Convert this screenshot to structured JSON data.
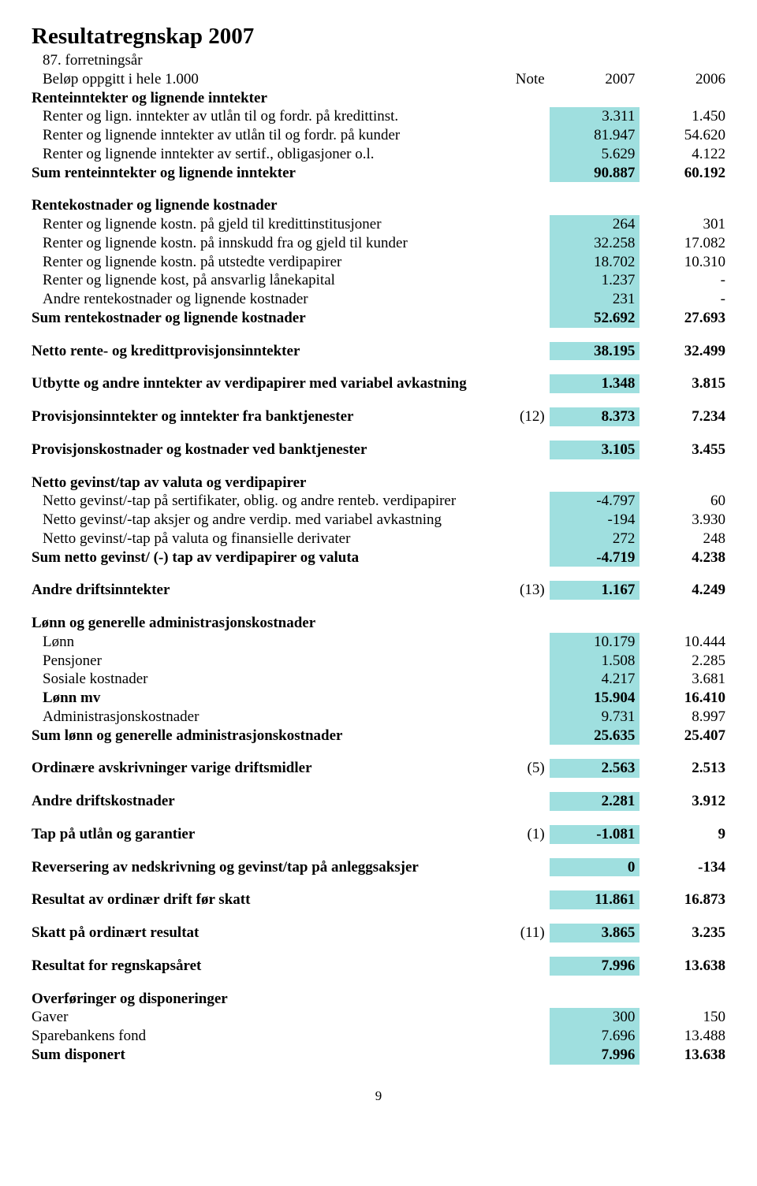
{
  "title": "Resultatregnskap 2007",
  "subtitle1": "87. forretningsår",
  "subtitle2": "Beløp oppgitt i hele 1.000",
  "header": {
    "note": "Note",
    "c2007": "2007",
    "c2006": "2006"
  },
  "pagenum": "9",
  "rows": [
    {
      "label": "Renteinntekter og lignende inntekter",
      "bold": true
    },
    {
      "label": "Renter og lign. inntekter av utlån til og fordr. på kredittinst.",
      "indent": true,
      "c2007": "3.311",
      "c2006": "1.450",
      "hl": "2007"
    },
    {
      "label": "Renter og lignende inntekter av utlån til og fordr. på kunder",
      "indent": true,
      "c2007": "81.947",
      "c2006": "54.620",
      "hl": "2007"
    },
    {
      "label": "Renter og lignende inntekter av sertif., obligasjoner o.l.",
      "indent": true,
      "c2007": "5.629",
      "c2006": "4.122",
      "hl": "2007"
    },
    {
      "label": "Sum renteinntekter og lignende inntekter",
      "bold": true,
      "c2007": "90.887",
      "c2006": "60.192",
      "hl": "2007"
    },
    {
      "spacer": true
    },
    {
      "label": "Rentekostnader og lignende kostnader",
      "bold": true
    },
    {
      "label": "Renter og lignende kostn. på gjeld til kredittinstitusjoner",
      "indent": true,
      "c2007": "264",
      "c2006": "301",
      "hl": "2007"
    },
    {
      "label": "Renter og lignende kostn. på innskudd fra og gjeld til kunder",
      "indent": true,
      "c2007": "32.258",
      "c2006": "17.082",
      "hl": "2007"
    },
    {
      "label": "Renter og lignende kostn. på utstedte verdipapirer",
      "indent": true,
      "c2007": "18.702",
      "c2006": "10.310",
      "hl": "2007"
    },
    {
      "label": "Renter og lignende kost, på ansvarlig lånekapital",
      "indent": true,
      "c2007": "1.237",
      "c2006": "-",
      "hl": "2007"
    },
    {
      "label": "Andre rentekostnader og lignende kostnader",
      "indent": true,
      "c2007": "231",
      "c2006": "-",
      "hl": "2007"
    },
    {
      "label": "Sum rentekostnader og lignende kostnader",
      "bold": true,
      "c2007": "52.692",
      "c2006": "27.693",
      "hl": "2007"
    },
    {
      "spacer": true
    },
    {
      "label": "Netto rente- og kredittprovisjonsinntekter",
      "bold": true,
      "c2007": "38.195",
      "c2006": "32.499",
      "hl": "2007"
    },
    {
      "spacer": true
    },
    {
      "label": "Utbytte og andre inntekter av verdipapirer med variabel avkastning",
      "bold": true,
      "c2007": "1.348",
      "c2006": "3.815",
      "hl": "2007"
    },
    {
      "spacer": true
    },
    {
      "label": "Provisjonsinntekter og inntekter fra banktjenester",
      "bold": true,
      "note": "(12)",
      "c2007": "8.373",
      "c2006": "7.234",
      "hl": "2007"
    },
    {
      "spacer": true
    },
    {
      "label": "Provisjonskostnader og kostnader ved banktjenester",
      "bold": true,
      "c2007": "3.105",
      "c2006": "3.455",
      "hl": "2007"
    },
    {
      "spacer": true
    },
    {
      "label": "Netto gevinst/tap av valuta og verdipapirer",
      "bold": true
    },
    {
      "label": "Netto gevinst/-tap på sertifikater, oblig. og andre renteb. verdipapirer",
      "indent": true,
      "c2007": "-4.797",
      "c2006": "60",
      "hl": "2007"
    },
    {
      "label": "Netto gevinst/-tap aksjer og andre verdip. med variabel avkastning",
      "indent": true,
      "c2007": "-194",
      "c2006": "3.930",
      "hl": "2007"
    },
    {
      "label": "Netto gevinst/-tap på valuta og finansielle derivater",
      "indent": true,
      "c2007": "272",
      "c2006": "248",
      "hl": "2007"
    },
    {
      "label": "Sum netto gevinst/ (-) tap av verdipapirer og valuta",
      "bold": true,
      "c2007": "-4.719",
      "c2006": "4.238",
      "hl": "2007"
    },
    {
      "spacer": true
    },
    {
      "label": "Andre driftsinntekter",
      "bold": true,
      "note": "(13)",
      "c2007": "1.167",
      "c2006": "4.249",
      "hl": "2007"
    },
    {
      "spacer": true
    },
    {
      "label": "Lønn og generelle administrasjonskostnader",
      "bold": true
    },
    {
      "label": "Lønn",
      "indent": true,
      "c2007": "10.179",
      "c2006": "10.444",
      "hl": "2007"
    },
    {
      "label": "Pensjoner",
      "indent": true,
      "c2007": "1.508",
      "c2006": "2.285",
      "hl": "2007"
    },
    {
      "label": "Sosiale kostnader",
      "indent": true,
      "c2007": "4.217",
      "c2006": "3.681",
      "hl": "2007"
    },
    {
      "label": "Lønn mv",
      "indent": true,
      "bold": true,
      "c2007": "15.904",
      "c2006": "16.410",
      "hl": "2007"
    },
    {
      "label": "Administrasjonskostnader",
      "indent": true,
      "c2007": "9.731",
      "c2006": "8.997",
      "hl": "2007"
    },
    {
      "label": "Sum lønn og generelle administrasjonskostnader",
      "bold": true,
      "c2007": "25.635",
      "c2006": "25.407",
      "hl": "2007"
    },
    {
      "spacer": true
    },
    {
      "label": "Ordinære avskrivninger varige driftsmidler",
      "bold": true,
      "note": "(5)",
      "c2007": "2.563",
      "c2006": "2.513",
      "hl": "2007"
    },
    {
      "spacer": true
    },
    {
      "label": "Andre driftskostnader",
      "bold": true,
      "c2007": "2.281",
      "c2006": "3.912",
      "hl": "2007"
    },
    {
      "spacer": true
    },
    {
      "label": "Tap på utlån og garantier",
      "bold": true,
      "note": "(1)",
      "c2007": "-1.081",
      "c2006": "9",
      "hl": "2007"
    },
    {
      "spacer": true
    },
    {
      "label": "Reversering av nedskrivning og gevinst/tap på anleggsaksjer",
      "bold": true,
      "c2007": "0",
      "c2006": "-134",
      "hl": "2007"
    },
    {
      "spacer": true
    },
    {
      "label": "Resultat av ordinær drift før skatt",
      "bold": true,
      "c2007": "11.861",
      "c2006": "16.873",
      "hl": "2007"
    },
    {
      "spacer": true
    },
    {
      "label": "Skatt på ordinært resultat",
      "bold": true,
      "note": "(11)",
      "c2007": "3.865",
      "c2006": "3.235",
      "hl": "2007"
    },
    {
      "spacer": true
    },
    {
      "label": "Resultat for regnskapsåret",
      "bold": true,
      "c2007": "7.996",
      "c2006": "13.638",
      "hl": "2007"
    },
    {
      "spacer": true
    },
    {
      "label": "Overføringer og disponeringer",
      "bold": true
    },
    {
      "label": "Gaver",
      "c2007": "300",
      "c2006": "150",
      "hl": "2007"
    },
    {
      "label": "Sparebankens fond",
      "c2007": "7.696",
      "c2006": "13.488",
      "hl": "2007"
    },
    {
      "label": "Sum disponert",
      "bold": true,
      "c2007": "7.996",
      "c2006": "13.638",
      "hl": "2007"
    }
  ]
}
